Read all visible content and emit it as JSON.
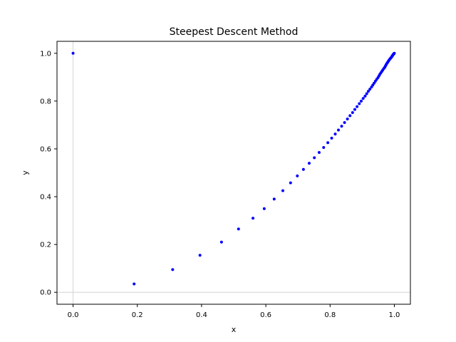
{
  "chart_data": {
    "type": "scatter",
    "title": "Steepest Descent Method",
    "xlabel": "x",
    "ylabel": "y",
    "xlim": [
      -0.05,
      1.05
    ],
    "ylim": [
      -0.05,
      1.05
    ],
    "xticks": [
      0.0,
      0.2,
      0.4,
      0.6,
      0.8,
      1.0
    ],
    "yticks": [
      0.0,
      0.2,
      0.4,
      0.6,
      0.8,
      1.0
    ],
    "xtick_labels": [
      "0.0",
      "0.2",
      "0.4",
      "0.6",
      "0.8",
      "1.0"
    ],
    "ytick_labels": [
      "0.0",
      "0.2",
      "0.4",
      "0.6",
      "0.8",
      "1.0"
    ],
    "grid": false,
    "reference_lines": [
      {
        "axis": "x",
        "value": 0
      },
      {
        "axis": "y",
        "value": 0
      }
    ],
    "series": [
      {
        "color": "#0000ff",
        "x": [
          0.0,
          0.19,
          0.31,
          0.395,
          0.462,
          0.515,
          0.56,
          0.595,
          0.626,
          0.653,
          0.677,
          0.698,
          0.717,
          0.735,
          0.751,
          0.766,
          0.78,
          0.793,
          0.805,
          0.816,
          0.826,
          0.836,
          0.845,
          0.854,
          0.862,
          0.87,
          0.877,
          0.884,
          0.891,
          0.897,
          0.903,
          0.909,
          0.914,
          0.919,
          0.924,
          0.929,
          0.933,
          0.937,
          0.941,
          0.945,
          0.949,
          0.952,
          0.955,
          0.958,
          0.961,
          0.964,
          0.967,
          0.97,
          0.972,
          0.974,
          0.976,
          0.978,
          0.98,
          0.982,
          0.984,
          0.986,
          0.988,
          0.99,
          0.992,
          0.993,
          0.994,
          0.995,
          0.996,
          0.997,
          0.998,
          0.999,
          1.0
        ],
        "y": [
          1.0,
          0.035,
          0.095,
          0.155,
          0.21,
          0.265,
          0.31,
          0.35,
          0.39,
          0.425,
          0.458,
          0.487,
          0.514,
          0.54,
          0.563,
          0.585,
          0.606,
          0.626,
          0.645,
          0.662,
          0.679,
          0.695,
          0.71,
          0.725,
          0.739,
          0.752,
          0.765,
          0.777,
          0.789,
          0.8,
          0.811,
          0.821,
          0.831,
          0.841,
          0.85,
          0.859,
          0.867,
          0.875,
          0.883,
          0.891,
          0.898,
          0.905,
          0.912,
          0.918,
          0.924,
          0.93,
          0.936,
          0.941,
          0.946,
          0.951,
          0.956,
          0.96,
          0.964,
          0.968,
          0.972,
          0.976,
          0.979,
          0.982,
          0.985,
          0.988,
          0.99,
          0.992,
          0.994,
          0.996,
          0.997,
          0.999,
          1.0
        ]
      }
    ]
  }
}
